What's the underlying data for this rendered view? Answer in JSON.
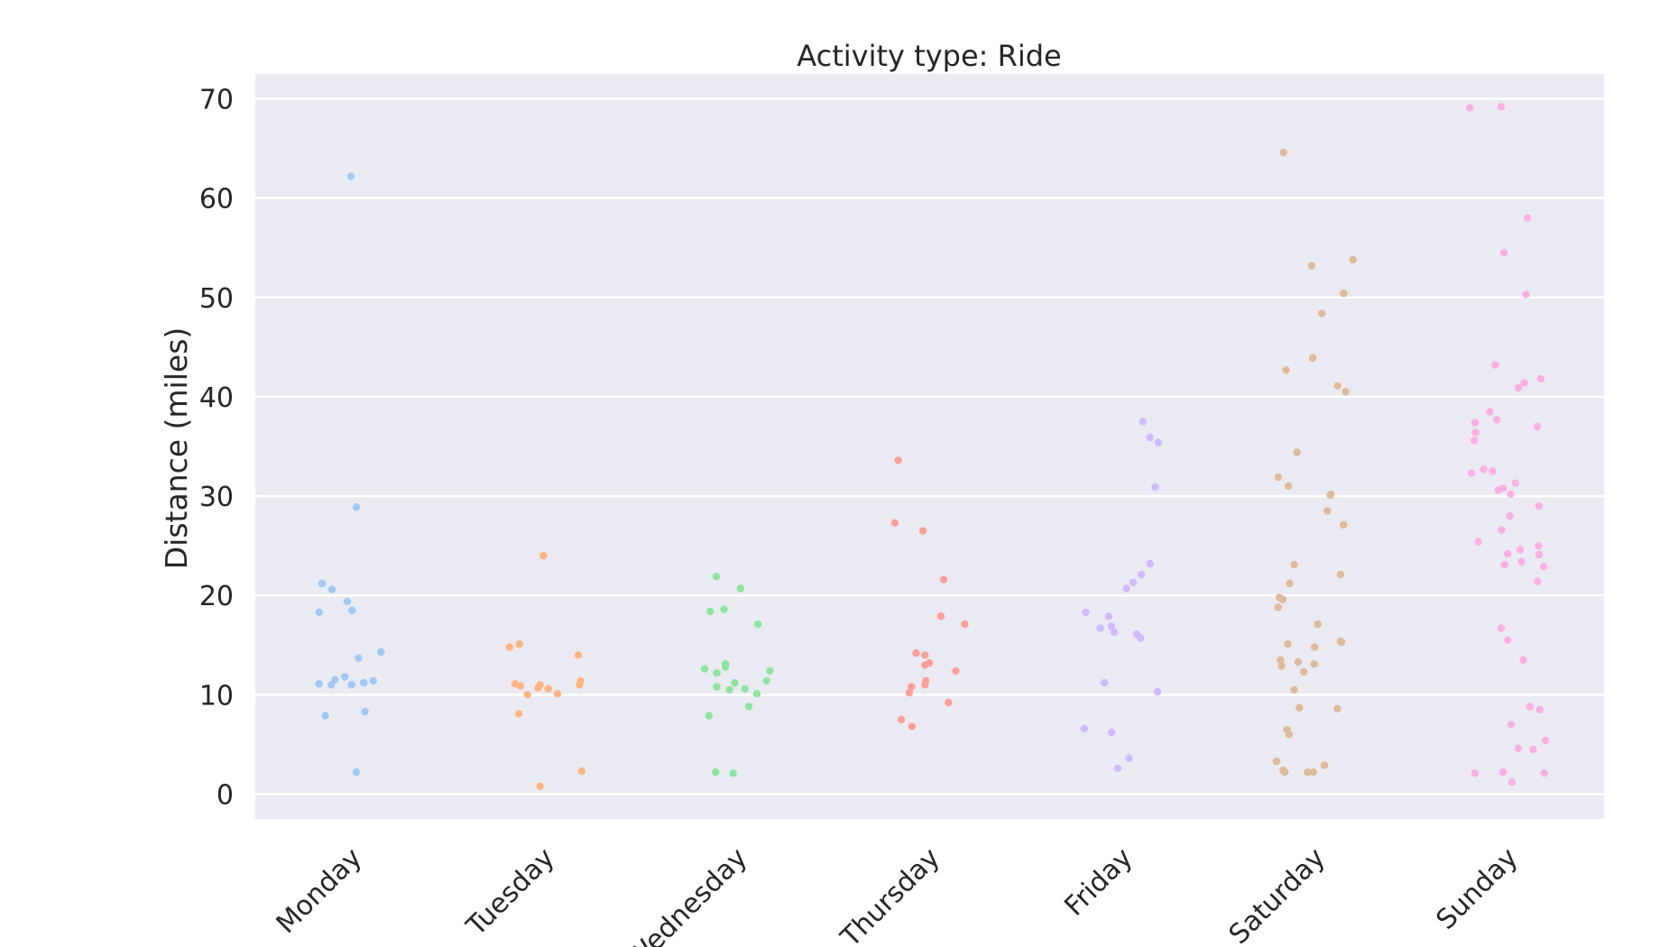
{
  "chart_data": {
    "type": "scatter",
    "subtype": "strip",
    "title": "Activity type: Ride",
    "xlabel": "",
    "ylabel": "Distance (miles)",
    "ylim": [
      -2.5,
      72.5
    ],
    "yticks": [
      0,
      10,
      20,
      30,
      40,
      50,
      60,
      70
    ],
    "grid": true,
    "legend": "none",
    "categories": [
      "Monday",
      "Tuesday",
      "Wednesday",
      "Thursday",
      "Friday",
      "Saturday",
      "Sunday"
    ],
    "colors": [
      "#a1c9f4",
      "#ffb482",
      "#8de5a1",
      "#ff9f9b",
      "#d0bbff",
      "#debb9b",
      "#fab0e4"
    ],
    "series": [
      {
        "values": [
          62.2,
          28.9,
          21.2,
          20.6,
          19.4,
          18.5,
          18.3,
          14.3,
          13.7,
          11.8,
          11.5,
          11.4,
          11.2,
          11.1,
          11.0,
          11.0,
          8.3,
          7.9,
          2.2
        ]
      },
      {
        "values": [
          24.0,
          15.1,
          14.8,
          14.0,
          11.4,
          11.1,
          11.0,
          11.0,
          10.9,
          10.7,
          10.6,
          10.1,
          10.0,
          8.1,
          2.3,
          0.8
        ]
      },
      {
        "values": [
          21.9,
          20.7,
          18.6,
          18.4,
          17.1,
          13.1,
          12.8,
          12.6,
          12.4,
          12.2,
          11.4,
          11.2,
          10.8,
          10.6,
          10.5,
          10.1,
          8.8,
          7.9,
          2.2,
          2.1
        ]
      },
      {
        "values": [
          33.6,
          27.3,
          26.5,
          21.6,
          17.9,
          17.1,
          14.2,
          14.0,
          13.2,
          13.0,
          12.4,
          11.4,
          11.0,
          10.8,
          10.2,
          9.2,
          7.5,
          6.8
        ]
      },
      {
        "values": [
          37.5,
          35.9,
          35.4,
          30.9,
          23.2,
          22.1,
          21.3,
          20.7,
          18.3,
          17.9,
          16.9,
          16.7,
          16.3,
          16.1,
          15.7,
          11.2,
          10.3,
          6.6,
          6.2,
          3.6,
          2.6
        ]
      },
      {
        "values": [
          64.6,
          53.8,
          53.2,
          50.4,
          48.4,
          43.9,
          42.7,
          41.1,
          40.5,
          34.4,
          31.9,
          31.0,
          30.2,
          30.1,
          28.5,
          27.1,
          23.1,
          22.1,
          21.2,
          19.8,
          19.6,
          18.8,
          17.1,
          15.4,
          15.3,
          15.1,
          14.8,
          13.5,
          13.3,
          13.1,
          12.9,
          12.3,
          10.5,
          8.7,
          8.6,
          6.5,
          6.0,
          3.3,
          2.9,
          2.4,
          2.2,
          2.2,
          2.2
        ]
      },
      {
        "values": [
          69.2,
          69.1,
          58.0,
          54.5,
          50.3,
          43.2,
          41.8,
          41.4,
          40.9,
          38.5,
          37.7,
          37.4,
          37.0,
          36.4,
          35.6,
          32.7,
          32.5,
          32.3,
          31.3,
          30.8,
          30.6,
          30.2,
          29.0,
          28.0,
          26.6,
          25.4,
          25.0,
          24.6,
          24.2,
          24.1,
          23.4,
          23.1,
          22.9,
          21.4,
          16.7,
          15.5,
          13.5,
          8.8,
          8.5,
          7.0,
          5.4,
          4.6,
          4.5,
          2.2,
          2.1,
          2.1,
          1.2
        ]
      }
    ]
  }
}
